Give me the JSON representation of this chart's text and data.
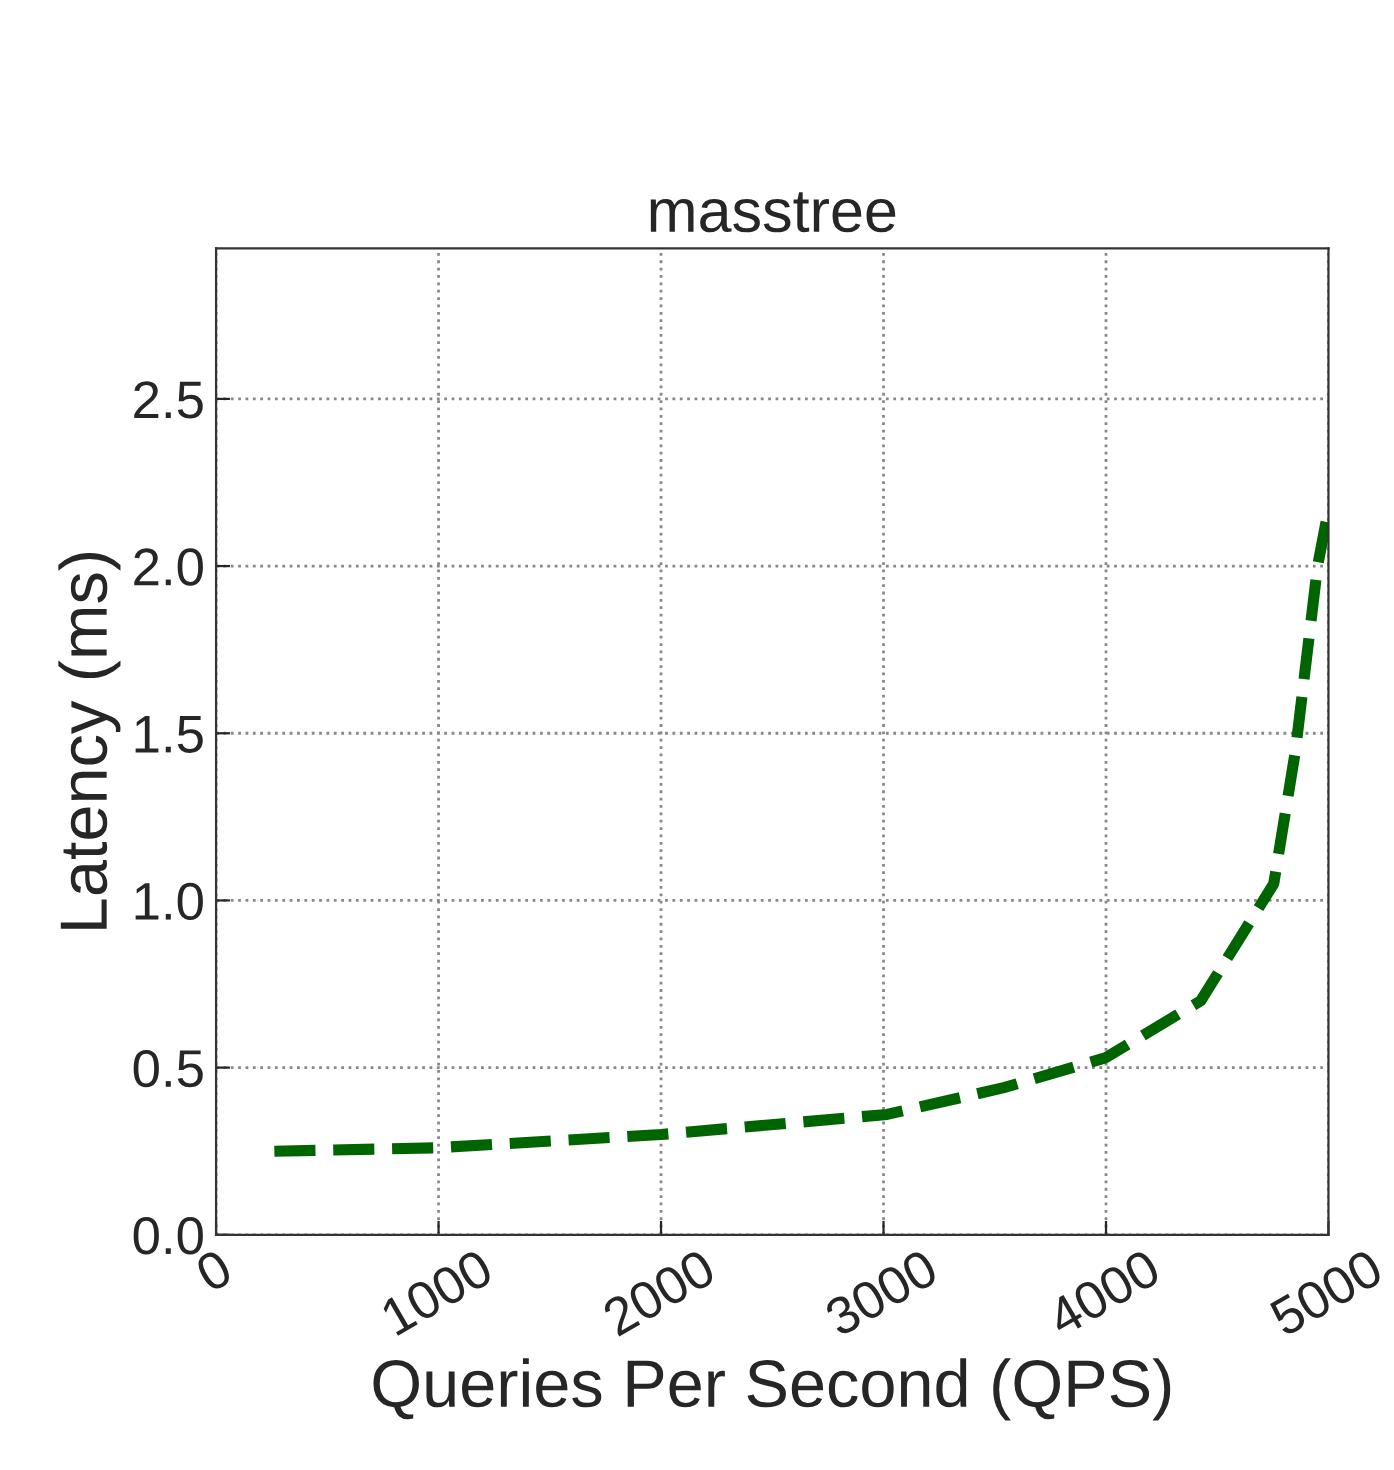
{
  "chart_data": {
    "type": "line",
    "title": "masstree",
    "xlabel": "Queries Per Second (QPS)",
    "ylabel": "Latency (ms)",
    "x": [
      262,
      984,
      2000,
      3016,
      3541,
      4000,
      4426,
      4754,
      4852,
      4951,
      5000
    ],
    "series": [
      {
        "color": "#006400",
        "values": [
          0.25,
          0.26,
          0.3,
          0.36,
          0.44,
          0.53,
          0.7,
          1.05,
          1.45,
          2.0,
          2.17
        ]
      }
    ],
    "xlim": [
      0,
      5000
    ],
    "xticks": [
      0,
      1000,
      2000,
      3000,
      4000,
      5000
    ],
    "ylim": [
      0,
      2.95
    ],
    "yticks": [
      {
        "value": 0,
        "label": "0.0"
      },
      0.5,
      {
        "value": 1,
        "label": "1.0"
      },
      1.5,
      {
        "value": 2,
        "label": "2.0"
      },
      2.5
    ],
    "grid": true,
    "line_style": "dashed",
    "marker": "none"
  }
}
